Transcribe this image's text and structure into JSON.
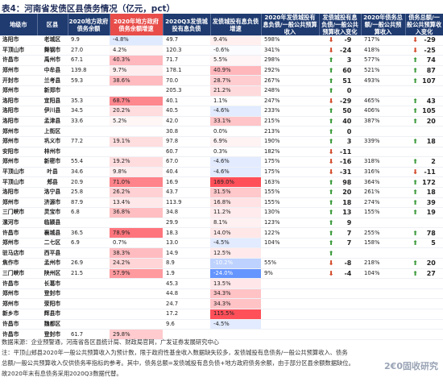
{
  "title": "表4：河南省发债区县债务情况（亿元，pct）",
  "headers": [
    "地级市",
    "区县",
    "2020地方政府债务余额",
    "2020年地方政府债务余额增速",
    "2020Q3发债城投有息负债",
    "发债城投有息负债增速",
    "2020年发债城投有息负债/一般公共预算收入",
    "发债城投有息负债/一般公共预算收入变化",
    "2020年债务总额/一般公共预算收入",
    "债务总额/一般公共预算收入变化"
  ],
  "rows": [
    [
      "洛阳市",
      "老城区",
      "9.9",
      "-4.8%",
      "49.7",
      "9.4%",
      "598%",
      "down",
      "-9",
      "717%",
      "down",
      "-29"
    ],
    [
      "平顶山市",
      "舞钢市",
      "27.0",
      "4.2%",
      "120.3",
      "-0.6%",
      "341%",
      "down",
      "-24",
      "418%",
      "down",
      "-25"
    ],
    [
      "许昌市",
      "禹州市",
      "67.1",
      "40.3%",
      "71.7",
      "5.5%",
      "298%",
      "up",
      "3",
      "577%",
      "up",
      "74"
    ],
    [
      "郑州市",
      "中牟县",
      "139.8",
      "9.7%",
      "178.1",
      "40.9%",
      "292%",
      "up",
      "60",
      "521%",
      "up",
      "87"
    ],
    [
      "开封市",
      "兰考县",
      "59.3",
      "38.6%",
      "70.0",
      "28.7%",
      "267%",
      "up",
      "51",
      "493%",
      "up",
      "107"
    ],
    [
      "郑州市",
      "新郑市",
      "",
      "",
      "205.3",
      "21.2%",
      "248%",
      "up",
      "0",
      "",
      "",
      " "
    ],
    [
      "洛阳市",
      "宜阳县",
      "35.3",
      "68.7%",
      "40.1",
      "1.1%",
      "247%",
      "down",
      "-29",
      "465%",
      "up",
      "43"
    ],
    [
      "洛阳市",
      "伊川县",
      "34.5",
      "20.2%",
      "40.5",
      "-4.6%",
      "233%",
      "up",
      "50",
      "406%",
      "up",
      "105"
    ],
    [
      "洛阳市",
      "孟津县",
      "33.6",
      "5.2%",
      "42.0",
      "33.1%",
      "215%",
      "up",
      "40",
      "387%",
      "up",
      "20"
    ],
    [
      "郑州市",
      "上街区",
      "",
      "",
      "30.8",
      "0.0%",
      "213%",
      "up",
      "0",
      "",
      "",
      " "
    ],
    [
      "郑州市",
      "巩义市",
      "77.2",
      "19.1%",
      "97.8",
      "6.9%",
      "190%",
      "up",
      "3",
      "339%",
      "up",
      "18"
    ],
    [
      "安阳市",
      "林州市",
      "",
      "",
      "60.7",
      "0.3%",
      "182%",
      "down",
      "-11",
      "",
      "",
      " "
    ],
    [
      "郑州市",
      "新密市",
      "55.4",
      "19.2%",
      "67.0",
      "-4.6%",
      "175%",
      "down",
      "-16",
      "318%",
      "up",
      "2"
    ],
    [
      "平顶山市",
      "叶县",
      "34.6",
      "9.8%",
      "40.4",
      "-4.6%",
      "175%",
      "down",
      "-31",
      "316%",
      "down",
      "-11"
    ],
    [
      "平顶山市",
      "郏县",
      "20.9",
      "71.0%",
      "16.9",
      "169.0%",
      "163%",
      "up",
      "98",
      "364%",
      "up",
      "172"
    ],
    [
      "洛阳市",
      "洛宁县",
      "25.8",
      "26.2%",
      "43.7",
      "31.5%",
      "155%",
      "up",
      "20",
      "261%",
      "up",
      "18"
    ],
    [
      "郑州市",
      "济源市",
      "87.9",
      "13.4%",
      "113.9",
      "16.8%",
      "155%",
      "up",
      "18",
      "274%",
      "up",
      "39"
    ],
    [
      "三门峡市",
      "灵宝市",
      "6.8",
      "36.8%",
      "34.8",
      "11.2%",
      "130%",
      "up",
      "13",
      "155%",
      "up",
      "19"
    ],
    [
      "漯河市",
      "临颍县",
      "",
      "",
      "29.9",
      "8.1%",
      "123%",
      "up",
      "9",
      "",
      "",
      " "
    ],
    [
      "许昌市",
      "襄城县",
      "36.5",
      "78.9%",
      "18.3",
      "14.0%",
      "122%",
      "up",
      "7",
      "255%",
      "up",
      "78"
    ],
    [
      "郑州市",
      "二七区",
      "6.9",
      "0.7%",
      "13.0",
      "-4.5%",
      "104%",
      "up",
      "7",
      "158%",
      "up",
      "5"
    ],
    [
      "驻马店市",
      "西平县",
      "",
      "38.3%",
      "14.9",
      "12.5%",
      "",
      "up",
      "",
      "",
      "",
      ""
    ],
    [
      "焦作市",
      "孟州市",
      "26.9",
      "24.2%",
      "8.9",
      "-10.2%",
      "55%",
      "down",
      "-8",
      "218%",
      "up",
      "20"
    ],
    [
      "三门峡市",
      "陕州区",
      "21.5",
      "57.9%",
      "1.9",
      "-24.0%",
      "9%",
      "down",
      "-4",
      "104%",
      "up",
      "27"
    ],
    [
      "许昌市",
      "长葛市",
      "",
      "",
      "45.3",
      "13.5%",
      "",
      "",
      "",
      "",
      "",
      ""
    ],
    [
      "郑州市",
      "登封市",
      "",
      "",
      "44.8",
      "34.3%",
      "",
      "",
      "",
      "",
      "",
      ""
    ],
    [
      "郑州市",
      "荥阳市",
      "",
      "",
      "24.7",
      "34.3%",
      "",
      "",
      "",
      "",
      "",
      ""
    ],
    [
      "新乡市",
      "辉县市",
      "",
      "",
      "17.2",
      "115.5%",
      "",
      "",
      "",
      "",
      "",
      ""
    ],
    [
      "许昌市",
      "魏都区",
      "",
      "",
      "9.6",
      "-4.5%",
      "",
      "",
      "",
      "",
      "",
      ""
    ],
    [
      "许昌市",
      "登封市",
      "61.7",
      "29.8%",
      "",
      "",
      "",
      "",
      "",
      "",
      "",
      ""
    ]
  ],
  "notes": [
    "数据来源：企业预警通，河南省各区县统计局、财政局官网，广发证券发展研究中心",
    "注：平顶山郏县2020年一般公共预算收入为预计数，限于政府性基金收入数据缺失较多，发债城投有息债务/一般公共预算收入、债务",
    "总额/一般公共预算收入仅供债务率指标的参考。其中，债务总额=发债城投有息负债+地方政府债务余额，由于部分区县余额数据缺位。",
    "故2020年末有息债务采用2020Q3数据代替。"
  ],
  "watermark": "2€0固收研究",
  "colors": {
    "header_bg": "#1f3b70",
    "up_arrow": "#3a9a3a",
    "down_arrow": "#d24a2a"
  }
}
